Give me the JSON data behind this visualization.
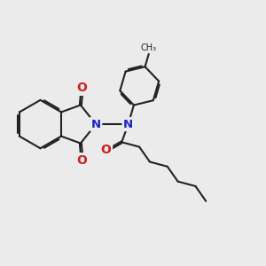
{
  "bg": "#ebebeb",
  "bond_color": "#222222",
  "N_color": "#2020cc",
  "O_color": "#cc2020",
  "lw": 1.5,
  "dbo": 0.06,
  "fs": 9.5,
  "xlim": [
    0,
    10
  ],
  "ylim": [
    0,
    10
  ]
}
